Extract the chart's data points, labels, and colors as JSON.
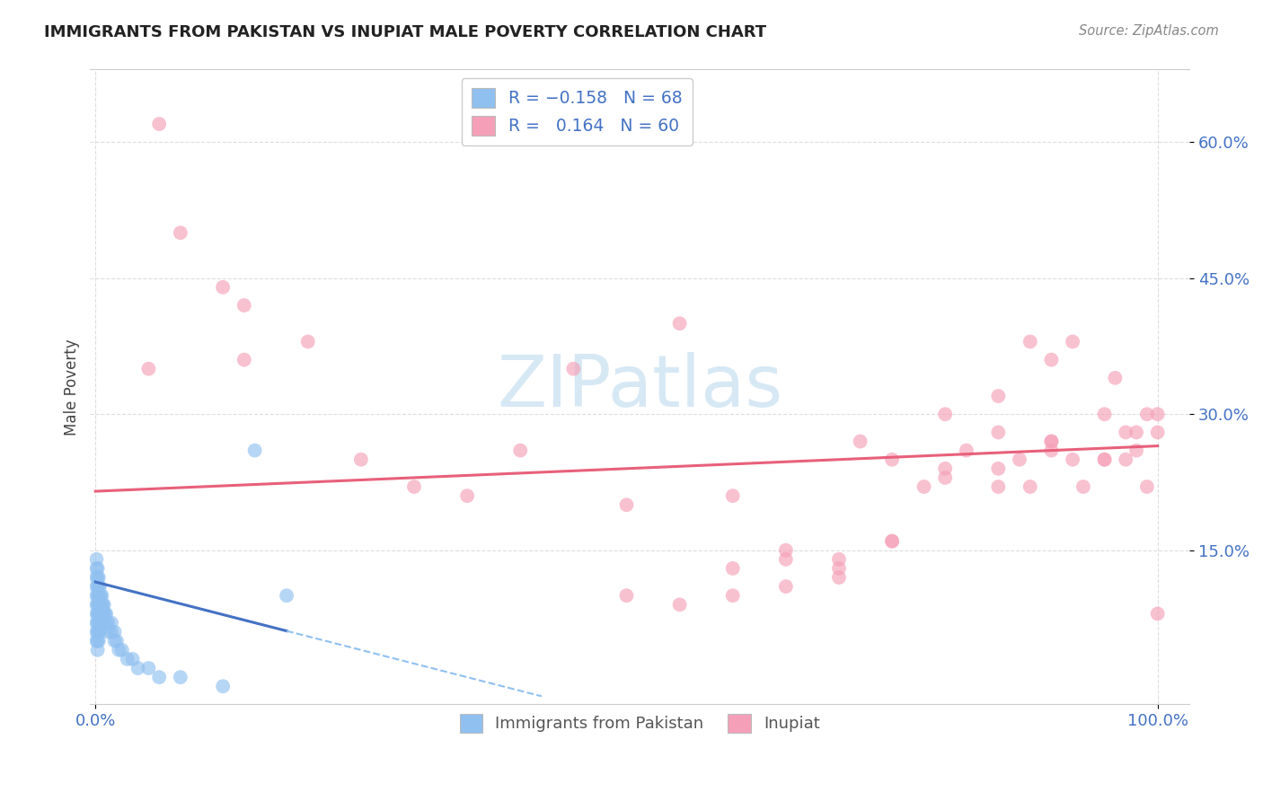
{
  "title": "IMMIGRANTS FROM PAKISTAN VS INUPIAT MALE POVERTY CORRELATION CHART",
  "source": "Source: ZipAtlas.com",
  "ylabel": "Male Poverty",
  "y_tick_labels": [
    "15.0%",
    "30.0%",
    "45.0%",
    "60.0%"
  ],
  "y_tick_values": [
    0.15,
    0.3,
    0.45,
    0.6
  ],
  "x_tick_labels": [
    "0.0%",
    "100.0%"
  ],
  "x_tick_values": [
    0.0,
    1.0
  ],
  "legend_label1": "Immigrants from Pakistan",
  "legend_label2": "Inupiat",
  "color_blue": "#90C0F0",
  "color_pink": "#F5A0B8",
  "line_blue_solid": "#4472C4",
  "line_blue_dash": "#90C0F0",
  "line_pink": "#E8607A",
  "background_color": "#FFFFFF",
  "watermark_text": "ZIPatlas",
  "watermark_color": "#D0E4F4",
  "xlim": [
    -0.005,
    1.03
  ],
  "ylim": [
    -0.02,
    0.68
  ],
  "pakistan_x": [
    0.001,
    0.001,
    0.001,
    0.001,
    0.001,
    0.001,
    0.001,
    0.001,
    0.001,
    0.001,
    0.002,
    0.002,
    0.002,
    0.002,
    0.002,
    0.002,
    0.002,
    0.002,
    0.002,
    0.002,
    0.003,
    0.003,
    0.003,
    0.003,
    0.003,
    0.003,
    0.003,
    0.003,
    0.004,
    0.004,
    0.004,
    0.004,
    0.004,
    0.004,
    0.005,
    0.005,
    0.005,
    0.005,
    0.006,
    0.006,
    0.006,
    0.007,
    0.007,
    0.007,
    0.008,
    0.008,
    0.009,
    0.009,
    0.01,
    0.01,
    0.012,
    0.012,
    0.015,
    0.015,
    0.018,
    0.018,
    0.02,
    0.022,
    0.025,
    0.03,
    0.035,
    0.04,
    0.05,
    0.06,
    0.08,
    0.12,
    0.15,
    0.18
  ],
  "pakistan_y": [
    0.1,
    0.09,
    0.08,
    0.11,
    0.12,
    0.07,
    0.06,
    0.13,
    0.05,
    0.14,
    0.1,
    0.09,
    0.08,
    0.11,
    0.07,
    0.06,
    0.12,
    0.05,
    0.13,
    0.04,
    0.1,
    0.09,
    0.08,
    0.11,
    0.07,
    0.06,
    0.12,
    0.05,
    0.1,
    0.09,
    0.08,
    0.07,
    0.11,
    0.06,
    0.1,
    0.09,
    0.08,
    0.07,
    0.1,
    0.09,
    0.08,
    0.09,
    0.08,
    0.07,
    0.09,
    0.08,
    0.08,
    0.07,
    0.08,
    0.07,
    0.07,
    0.06,
    0.07,
    0.06,
    0.06,
    0.05,
    0.05,
    0.04,
    0.04,
    0.03,
    0.03,
    0.02,
    0.02,
    0.01,
    0.01,
    0.0,
    0.26,
    0.1
  ],
  "inupiat_x": [
    0.06,
    0.08,
    0.12,
    0.14,
    0.14,
    0.05,
    0.2,
    0.25,
    0.3,
    0.35,
    0.4,
    0.45,
    0.5,
    0.55,
    0.6,
    0.6,
    0.65,
    0.65,
    0.7,
    0.7,
    0.72,
    0.75,
    0.75,
    0.78,
    0.8,
    0.8,
    0.82,
    0.85,
    0.85,
    0.85,
    0.87,
    0.88,
    0.88,
    0.9,
    0.9,
    0.9,
    0.92,
    0.92,
    0.93,
    0.95,
    0.95,
    0.96,
    0.97,
    0.97,
    0.98,
    0.98,
    0.99,
    0.99,
    1.0,
    1.0,
    1.0,
    0.5,
    0.55,
    0.6,
    0.65,
    0.7,
    0.75,
    0.8,
    0.85,
    0.9,
    0.95
  ],
  "inupiat_y": [
    0.62,
    0.5,
    0.44,
    0.42,
    0.36,
    0.35,
    0.38,
    0.25,
    0.22,
    0.21,
    0.26,
    0.35,
    0.2,
    0.4,
    0.21,
    0.1,
    0.15,
    0.11,
    0.14,
    0.12,
    0.27,
    0.16,
    0.25,
    0.22,
    0.3,
    0.24,
    0.26,
    0.32,
    0.28,
    0.24,
    0.25,
    0.22,
    0.38,
    0.27,
    0.26,
    0.36,
    0.25,
    0.38,
    0.22,
    0.3,
    0.25,
    0.34,
    0.28,
    0.25,
    0.28,
    0.26,
    0.3,
    0.22,
    0.3,
    0.28,
    0.08,
    0.1,
    0.09,
    0.13,
    0.14,
    0.13,
    0.16,
    0.23,
    0.22,
    0.27,
    0.25
  ],
  "pak_line_x0": 0.0,
  "pak_line_x_solid_end": 0.18,
  "pak_line_x_dash_end": 0.42,
  "pak_line_y0": 0.115,
  "pak_line_slope": -0.3,
  "inu_line_x0": 0.0,
  "inu_line_x1": 1.0,
  "inu_line_y0": 0.215,
  "inu_line_y1": 0.265
}
